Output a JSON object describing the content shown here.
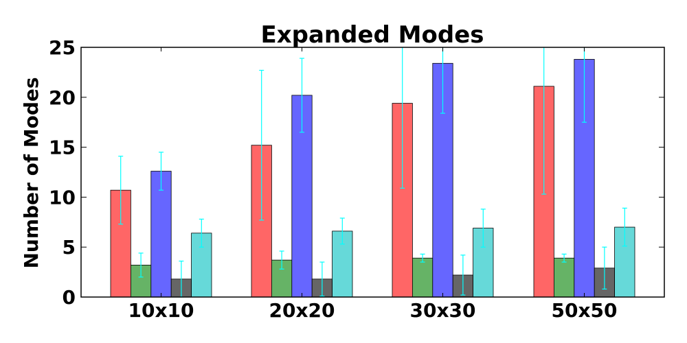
{
  "chart_data": {
    "type": "bar",
    "title": "Expanded Modes",
    "xlabel": "",
    "ylabel": "Number of Modes",
    "categories": [
      "10x10",
      "20x20",
      "30x30",
      "50x50"
    ],
    "ylim": [
      0,
      25
    ],
    "yticks": [
      0,
      5,
      10,
      15,
      20,
      25
    ],
    "grid": false,
    "legend": "none",
    "error_bar_color": "#00ffff",
    "series": [
      {
        "color": "#ff6666",
        "values": [
          10.7,
          15.2,
          19.4,
          21.1
        ],
        "errors": [
          3.4,
          7.5,
          8.5,
          10.8
        ]
      },
      {
        "color": "#66b366",
        "values": [
          3.2,
          3.7,
          3.9,
          3.9
        ],
        "errors": [
          1.2,
          0.9,
          0.4,
          0.4
        ]
      },
      {
        "color": "#6666ff",
        "values": [
          12.6,
          20.2,
          23.4,
          23.8
        ],
        "errors": [
          1.9,
          3.7,
          5.0,
          6.3
        ]
      },
      {
        "color": "#666666",
        "values": [
          1.8,
          1.8,
          2.2,
          2.9
        ],
        "errors": [
          1.8,
          1.7,
          2.0,
          2.1
        ]
      },
      {
        "color": "#66d9d9",
        "values": [
          6.4,
          6.6,
          6.9,
          7.0
        ],
        "errors": [
          1.4,
          1.3,
          1.9,
          1.9
        ]
      }
    ]
  }
}
